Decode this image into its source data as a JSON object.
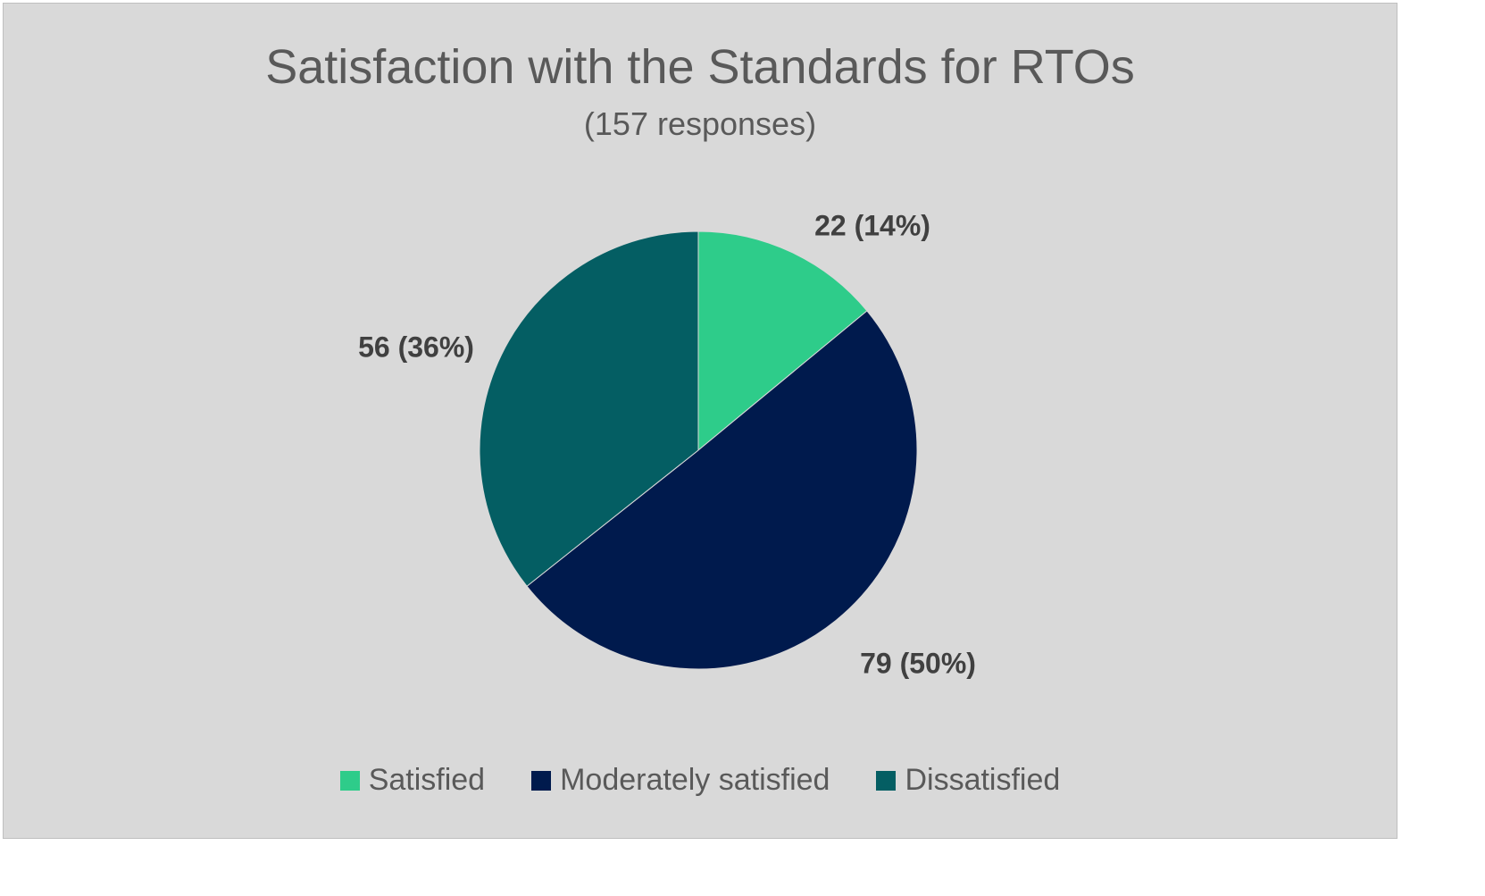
{
  "chart_data": {
    "type": "pie",
    "title": "Satisfaction with the Standards for RTOs",
    "subtitle": "(157 responses)",
    "slices": [
      {
        "name": "Satisfied",
        "value": 22,
        "percent": 14,
        "color": "#2ecc8a",
        "label": "22 (14%)"
      },
      {
        "name": "Moderately satisfied",
        "value": 79,
        "percent": 50,
        "color": "#001a4d",
        "label": "79 (50%)"
      },
      {
        "name": "Dissatisfied",
        "value": 56,
        "percent": 36,
        "color": "#045e63",
        "label": "56 (36%)"
      }
    ],
    "legend_position": "bottom",
    "start_angle": "12 o'clock",
    "direction": "clockwise"
  }
}
